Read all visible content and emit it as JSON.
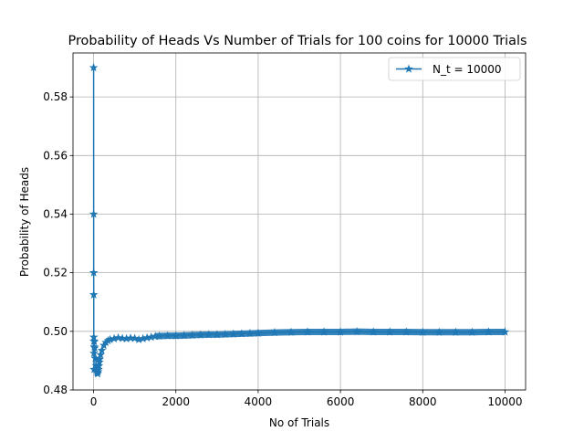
{
  "chart_data": {
    "type": "line",
    "title": "Probability of Heads Vs Number of Trials for 100 coins for 10000 Trials",
    "xlabel": "No of Trials",
    "ylabel": "Probability of Heads",
    "xlim": [
      -500,
      10500
    ],
    "ylim": [
      0.48,
      0.595
    ],
    "xticks": [
      0,
      2000,
      4000,
      6000,
      8000,
      10000
    ],
    "yticks": [
      0.48,
      0.5,
      0.52,
      0.54,
      0.56,
      0.58
    ],
    "ytick_labels": [
      "0.48",
      "0.50",
      "0.52",
      "0.54",
      "0.56",
      "0.58"
    ],
    "grid": true,
    "legend_position": "top-right",
    "series": [
      {
        "name": "N_t = 10000",
        "color": "#1f77b4",
        "marker": "star",
        "x": [
          1,
          2,
          3,
          4,
          5,
          6,
          8,
          10,
          15,
          20,
          30,
          40,
          50,
          60,
          70,
          80,
          90,
          100,
          110,
          120,
          130,
          140,
          150,
          170,
          200,
          250,
          300,
          350,
          400,
          500,
          600,
          700,
          800,
          900,
          1000,
          1100,
          1200,
          1300,
          1400,
          1500,
          1600,
          1800,
          2000,
          2200,
          2400,
          2600,
          2800,
          3000,
          3200,
          3400,
          3600,
          3800,
          4000,
          4400,
          4800,
          5200,
          5600,
          6000,
          6400,
          6800,
          7200,
          7600,
          8000,
          8400,
          8800,
          9200,
          9600,
          10000
        ],
        "y": [
          0.59,
          0.54,
          0.52,
          0.5125,
          0.498,
          0.4967,
          0.4925,
          0.487,
          0.4947,
          0.4965,
          0.4943,
          0.4908,
          0.4908,
          0.4883,
          0.4871,
          0.4862,
          0.4858,
          0.4855,
          0.4862,
          0.487,
          0.4882,
          0.4895,
          0.4905,
          0.492,
          0.4935,
          0.4952,
          0.4962,
          0.4968,
          0.4972,
          0.4975,
          0.4978,
          0.4976,
          0.4975,
          0.4977,
          0.4976,
          0.4972,
          0.4975,
          0.4978,
          0.498,
          0.4983,
          0.4984,
          0.4985,
          0.4985,
          0.4986,
          0.4987,
          0.4988,
          0.4989,
          0.4989,
          0.499,
          0.4991,
          0.4992,
          0.4993,
          0.4994,
          0.4996,
          0.4997,
          0.4998,
          0.4998,
          0.4998,
          0.4999,
          0.4998,
          0.4998,
          0.4998,
          0.4997,
          0.4997,
          0.4997,
          0.4997,
          0.4998,
          0.4998
        ]
      }
    ]
  }
}
